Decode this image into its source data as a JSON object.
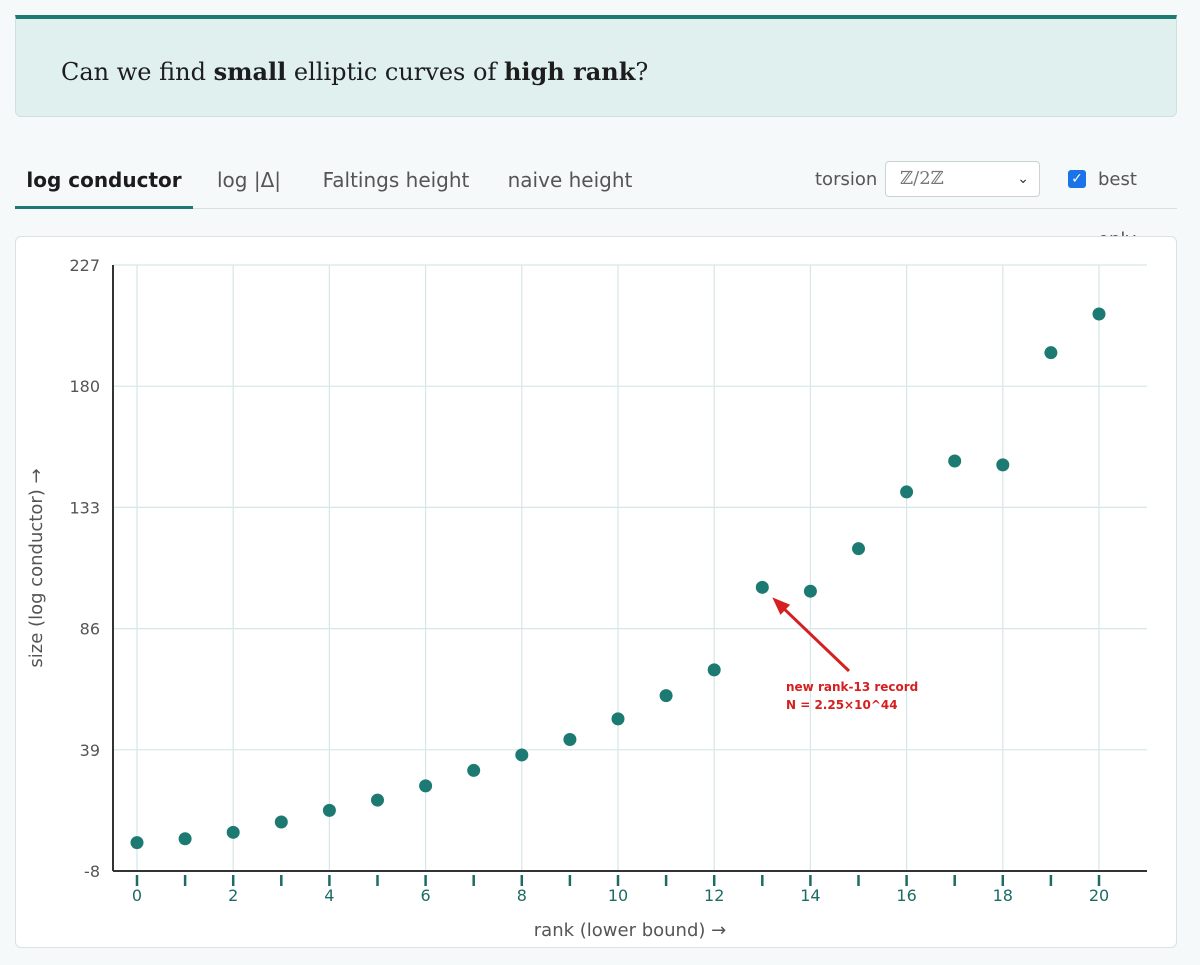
{
  "banner": {
    "pre": "Can we find ",
    "bold1": "small",
    "mid": " elliptic curves of ",
    "bold2": "high rank",
    "post": "?"
  },
  "tabs": [
    {
      "label": "log conductor",
      "active": true
    },
    {
      "label": "log |Δ|",
      "active": false
    },
    {
      "label": "Faltings height",
      "active": false
    },
    {
      "label": "naive height",
      "active": false
    }
  ],
  "controls": {
    "torsion_label": "torsion",
    "torsion_value": "ℤ/2ℤ",
    "best_only_label": "best only",
    "best_only_checked": true
  },
  "chart_data": {
    "type": "scatter",
    "xlabel": "rank (lower bound) →",
    "ylabel": "size (log conductor) →",
    "xlim": [
      0,
      20
    ],
    "ylim": [
      -8,
      227
    ],
    "x_ticks": [
      0,
      1,
      2,
      3,
      4,
      5,
      6,
      7,
      8,
      9,
      10,
      11,
      12,
      13,
      14,
      15,
      16,
      17,
      18,
      19,
      20
    ],
    "x_tick_labels": [
      "0",
      "",
      "2",
      "",
      "4",
      "",
      "6",
      "",
      "8",
      "",
      "10",
      "",
      "12",
      "",
      "14",
      "",
      "16",
      "",
      "18",
      "",
      "20"
    ],
    "y_ticks": [
      -8,
      39,
      86,
      133,
      180,
      227
    ],
    "y_tick_labels": [
      "-8",
      "39",
      "86",
      "133",
      "180",
      "227"
    ],
    "grid": true,
    "color": "#1d7a72",
    "points": [
      {
        "x": 0,
        "y": 3
      },
      {
        "x": 1,
        "y": 4.5
      },
      {
        "x": 2,
        "y": 7
      },
      {
        "x": 3,
        "y": 11
      },
      {
        "x": 4,
        "y": 15.5
      },
      {
        "x": 5,
        "y": 19.5
      },
      {
        "x": 6,
        "y": 25
      },
      {
        "x": 7,
        "y": 31
      },
      {
        "x": 8,
        "y": 37
      },
      {
        "x": 9,
        "y": 43
      },
      {
        "x": 10,
        "y": 51
      },
      {
        "x": 11,
        "y": 60
      },
      {
        "x": 12,
        "y": 70
      },
      {
        "x": 13,
        "y": 102
      },
      {
        "x": 14,
        "y": 100.5
      },
      {
        "x": 15,
        "y": 117
      },
      {
        "x": 16,
        "y": 139
      },
      {
        "x": 17,
        "y": 151
      },
      {
        "x": 18,
        "y": 149.5
      },
      {
        "x": 19,
        "y": 193
      },
      {
        "x": 20,
        "y": 208
      }
    ],
    "annotation": {
      "line1": "new rank-13 record",
      "line2": "N = 2.25×10^44",
      "target": {
        "x": 13,
        "y": 102
      },
      "color": "#d42020"
    }
  }
}
